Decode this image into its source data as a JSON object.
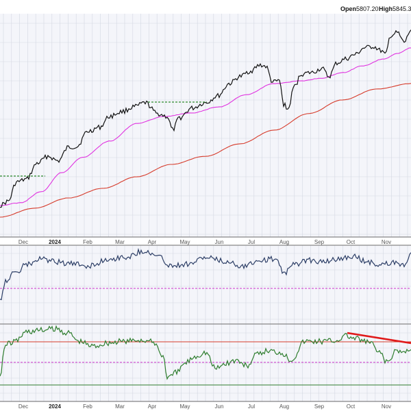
{
  "header": {
    "open_label": "Open",
    "open_value": "5807.20",
    "high_label": "High",
    "high_value": "5845.3"
  },
  "colors": {
    "background": "#f4f5fa",
    "grid": "#d4d8e2",
    "price": "#111111",
    "ma_short": "#e033e0",
    "ma_long": "#d63a2a",
    "rsi": "#2c3e66",
    "osc": "#2e7d2e",
    "ref_line_magenta": "#cc33cc",
    "ref_line_red": "#d63a2a",
    "ref_line_green": "#2e7d2e",
    "resistance_dashed": "#2a8a2a",
    "trendline": "#e01a1a",
    "separator": "#6b6b6b"
  },
  "x_axis": {
    "labels": [
      "Dec",
      "2024",
      "Feb",
      "Mar",
      "Apr",
      "May",
      "Jun",
      "Jul",
      "Aug",
      "Sep",
      "Oct",
      "Nov"
    ],
    "bold": [
      "2024"
    ]
  },
  "chart_data": [
    {
      "type": "line",
      "panel": "price",
      "x": [
        "Nov-23",
        "Dec-23",
        "Jan-24",
        "Feb-24",
        "Mar-24",
        "Apr-24",
        "May-24",
        "Jun-24",
        "Jul-24",
        "Aug-24",
        "Sep-24",
        "Oct-24",
        "Nov-24",
        "Dec-24"
      ],
      "series": [
        {
          "values": [
            4400,
            4570,
            4790,
            4980,
            5190,
            5260,
            5210,
            5400,
            5630,
            5360,
            5510,
            5700,
            5850,
            5900
          ]
        },
        {
          "values": [
            4320,
            4380,
            4560,
            4720,
            4890,
            5000,
            5070,
            5180,
            5310,
            5390,
            5470,
            5580,
            5700,
            5780
          ]
        },
        {
          "values": [
            4250,
            4300,
            4380,
            4450,
            4540,
            4640,
            4730,
            4830,
            4940,
            5050,
            5170,
            5280,
            5400,
            5470
          ]
        }
      ],
      "annotations": [
        "resistance-dashed-dec",
        "resistance-dashed-apr"
      ]
    },
    {
      "type": "line",
      "panel": "momentum",
      "reference_lines": [
        "dashed-magenta"
      ]
    },
    {
      "type": "line",
      "panel": "oscillator",
      "reference_lines": [
        "solid-red",
        "dashed-magenta",
        "solid-green"
      ],
      "annotations": [
        "downward-trendline"
      ]
    }
  ]
}
